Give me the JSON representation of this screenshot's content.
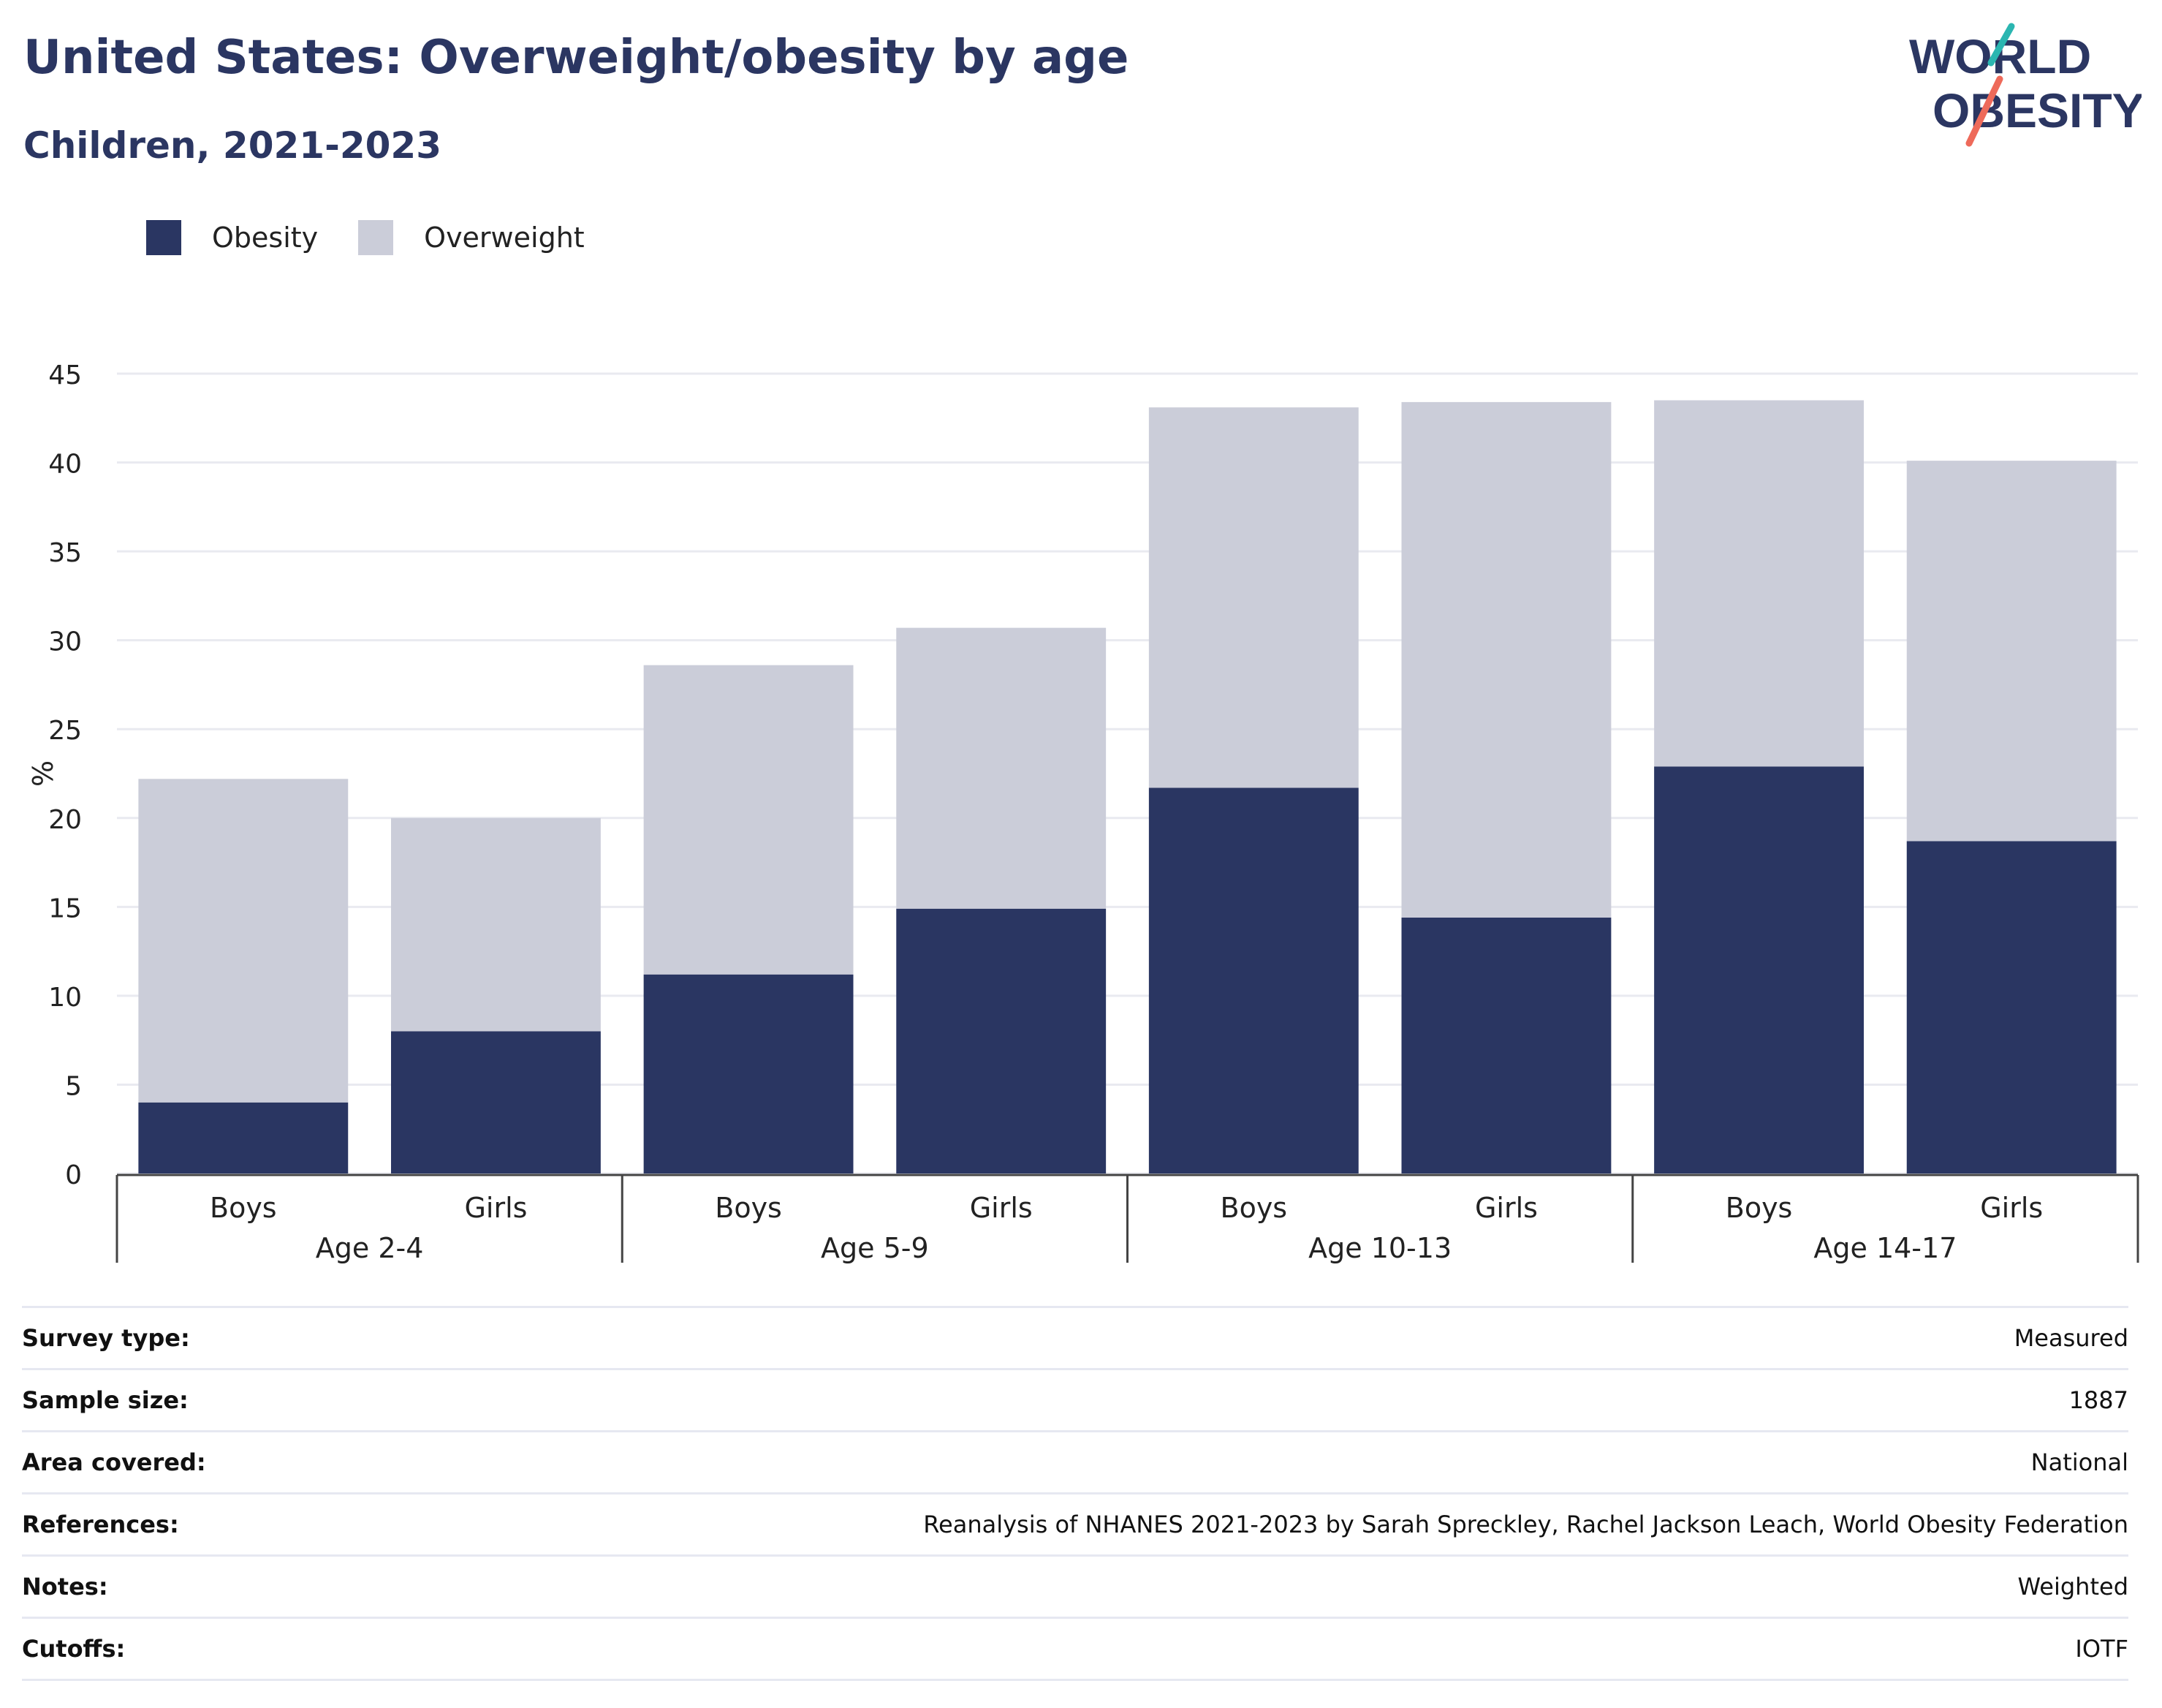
{
  "header": {
    "title": "United States: Overweight/obesity by age",
    "subtitle": "Children, 2021-2023"
  },
  "logo": {
    "line1": "WORLD",
    "line2": "OBESITY",
    "accent_teal": "#2bb6b1",
    "accent_coral": "#ee6a5a"
  },
  "colors": {
    "obesity": "#2a3662",
    "overweight": "#cbcdd9",
    "grid": "#e9eaf0",
    "axis": "#444444"
  },
  "chart_data": {
    "type": "bar",
    "stacked": true,
    "ylabel": "%",
    "ylim": [
      0,
      45
    ],
    "yticks": [
      0,
      5,
      10,
      15,
      20,
      25,
      30,
      35,
      40,
      45
    ],
    "grid": true,
    "legend_position": "top-left",
    "groups": [
      "Age 2-4",
      "Age 5-9",
      "Age 10-13",
      "Age 14-17"
    ],
    "categories": [
      "Boys",
      "Girls",
      "Boys",
      "Girls",
      "Boys",
      "Girls",
      "Boys",
      "Girls"
    ],
    "series": [
      {
        "name": "Obesity",
        "values": [
          4.0,
          8.0,
          11.2,
          14.9,
          21.7,
          14.4,
          22.9,
          18.7
        ]
      },
      {
        "name": "Overweight",
        "values": [
          18.2,
          12.0,
          17.4,
          15.8,
          21.4,
          29.0,
          20.6,
          21.4
        ]
      }
    ]
  },
  "info": [
    {
      "label": "Survey type:",
      "value": "Measured"
    },
    {
      "label": "Sample size:",
      "value": "1887"
    },
    {
      "label": "Area covered:",
      "value": "National"
    },
    {
      "label": "References:",
      "value": "Reanalysis of NHANES 2021-2023 by Sarah Spreckley, Rachel Jackson Leach, World Obesity Federation"
    },
    {
      "label": "Notes:",
      "value": "Weighted"
    },
    {
      "label": "Cutoffs:",
      "value": "IOTF"
    }
  ]
}
